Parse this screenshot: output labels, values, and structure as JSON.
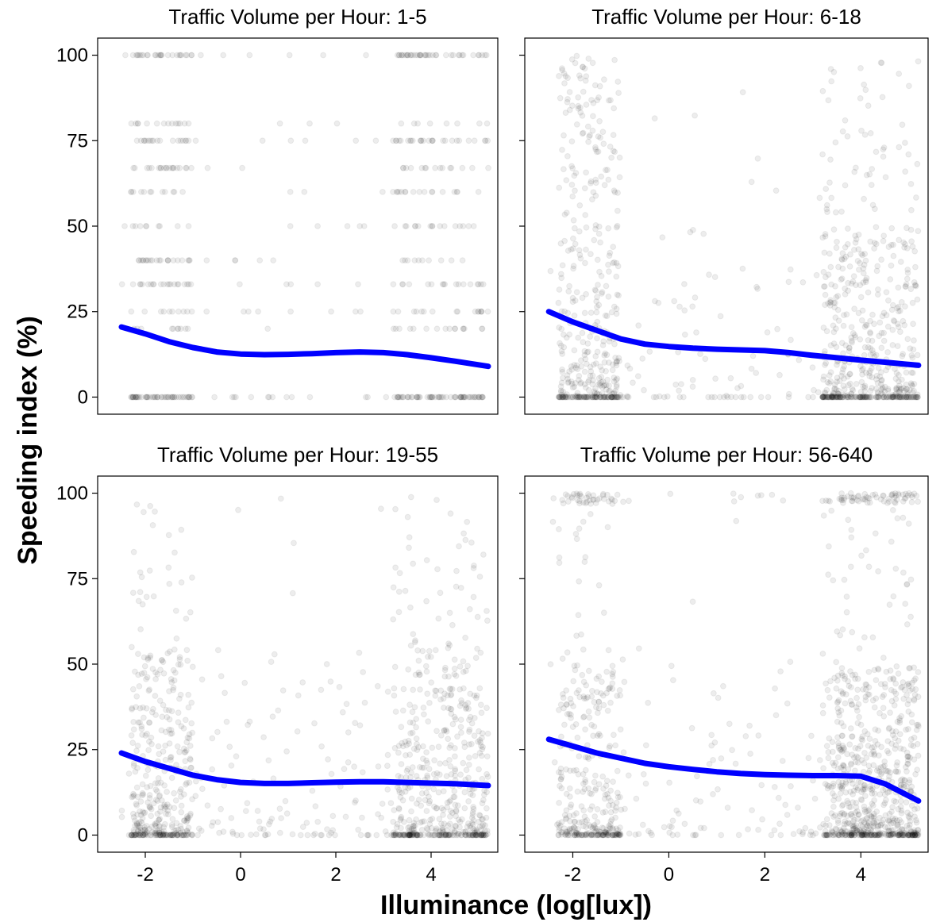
{
  "chart_data": {
    "type": "scatter",
    "xlabel": "Illuminance (log[lux])",
    "ylabel": "Speeding index (%)",
    "xlim": [
      -3,
      5.4
    ],
    "ylim": [
      -5,
      105
    ],
    "x_ticks": [
      -2,
      0,
      2,
      4
    ],
    "y_ticks": [
      0,
      25,
      50,
      75,
      100
    ],
    "grid": false,
    "point_color": "#000000",
    "point_alpha": 0.07,
    "smooth_color": "#0000ff",
    "facets": [
      {
        "title": "Traffic Volume per Hour: 1-5",
        "smooth": {
          "x": [
            -2.5,
            -2,
            -1.5,
            -1,
            -0.5,
            0,
            0.5,
            1,
            1.5,
            2,
            2.5,
            3,
            3.5,
            4,
            4.5,
            5.2
          ],
          "y": [
            20.5,
            18.5,
            16.2,
            14.5,
            13.2,
            12.6,
            12.4,
            12.5,
            12.7,
            13.0,
            13.2,
            13.0,
            12.4,
            11.5,
            10.5,
            9.0
          ]
        }
      },
      {
        "title": "Traffic Volume per Hour: 6-18",
        "smooth": {
          "x": [
            -2.5,
            -2,
            -1.5,
            -1,
            -0.5,
            0,
            0.5,
            1,
            1.5,
            2,
            2.5,
            3,
            3.5,
            4,
            4.5,
            5.2
          ],
          "y": [
            25,
            22,
            19.5,
            17,
            15.5,
            14.8,
            14.3,
            14.0,
            13.8,
            13.6,
            13.0,
            12.2,
            11.5,
            10.8,
            10.2,
            9.3
          ]
        }
      },
      {
        "title": "Traffic Volume per Hour: 19-55",
        "smooth": {
          "x": [
            -2.5,
            -2,
            -1.5,
            -1,
            -0.5,
            0,
            0.5,
            1,
            1.5,
            2,
            2.5,
            3,
            3.5,
            4,
            4.5,
            5.2
          ],
          "y": [
            24,
            21.5,
            19.5,
            17.5,
            16.2,
            15.4,
            15.1,
            15.1,
            15.3,
            15.5,
            15.6,
            15.6,
            15.4,
            15.2,
            15.0,
            14.5
          ]
        }
      },
      {
        "title": "Traffic Volume per Hour: 56-640",
        "smooth": {
          "x": [
            -2.5,
            -2,
            -1.5,
            -1,
            -0.5,
            0,
            0.5,
            1,
            1.5,
            2,
            2.5,
            3,
            3.5,
            4,
            4.5,
            5.2
          ],
          "y": [
            28,
            26,
            24,
            22.5,
            21,
            20,
            19.2,
            18.5,
            18.0,
            17.7,
            17.5,
            17.4,
            17.4,
            17.2,
            15.0,
            10.0
          ]
        }
      }
    ]
  }
}
